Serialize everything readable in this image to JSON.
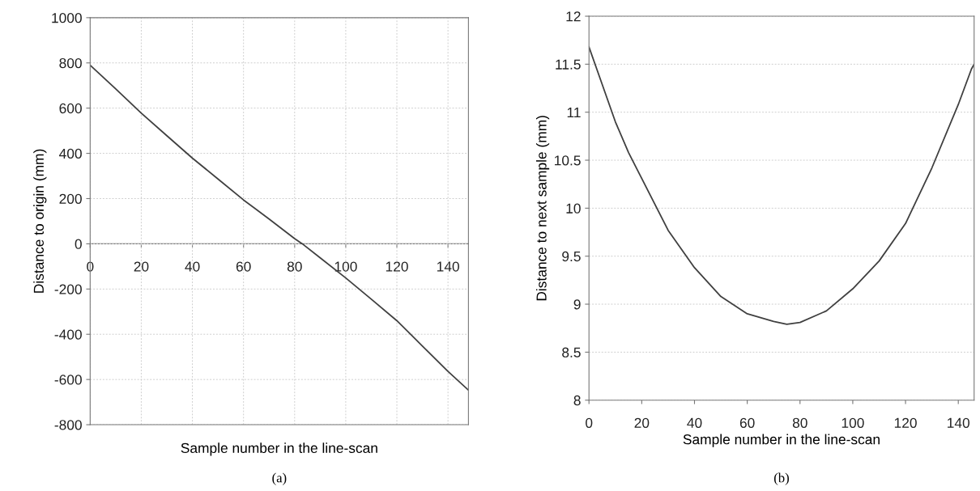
{
  "chart_data": [
    {
      "type": "line",
      "xlabel": "Sample number in the line-scan",
      "ylabel": "Distance to origin (mm)",
      "annotations": [
        "(a)"
      ],
      "x": [
        0,
        10,
        20,
        30,
        40,
        50,
        60,
        70,
        80,
        83,
        90,
        100,
        110,
        120,
        130,
        140,
        148
      ],
      "series": [
        {
          "color": "#404040",
          "values": [
            790,
            685,
            578,
            478,
            379,
            287,
            194,
            110,
            23,
            0,
            -62,
            -151,
            -245,
            -340,
            -452,
            -564,
            -647
          ]
        }
      ],
      "xlim": [
        0,
        148
      ],
      "ylim": [
        -800,
        1000
      ],
      "xticks": [
        0,
        20,
        40,
        60,
        80,
        100,
        120,
        140
      ],
      "yticks": [
        -800,
        -600,
        -400,
        -200,
        0,
        200,
        400,
        600,
        800,
        1000
      ],
      "grid": true
    },
    {
      "type": "line",
      "xlabel": "Sample number in the line-scan",
      "ylabel": "Distance to next sample (mm)",
      "annotations": [
        "(b)"
      ],
      "x": [
        0,
        5,
        10,
        15,
        20,
        30,
        40,
        50,
        60,
        70,
        75,
        80,
        90,
        100,
        110,
        120,
        130,
        140,
        145,
        146
      ],
      "series": [
        {
          "color": "#404040",
          "values": [
            11.68,
            11.29,
            10.9,
            10.58,
            10.31,
            9.77,
            9.38,
            9.08,
            8.9,
            8.82,
            8.79,
            8.81,
            8.93,
            9.16,
            9.45,
            9.84,
            10.42,
            11.08,
            11.45,
            11.5
          ]
        }
      ],
      "xlim": [
        0,
        146
      ],
      "ylim": [
        8,
        12
      ],
      "xticks": [
        0,
        20,
        40,
        60,
        80,
        100,
        120,
        140
      ],
      "yticks": [
        8,
        8.5,
        9,
        9.5,
        10,
        10.5,
        11,
        11.5,
        12
      ],
      "grid": "y"
    }
  ]
}
